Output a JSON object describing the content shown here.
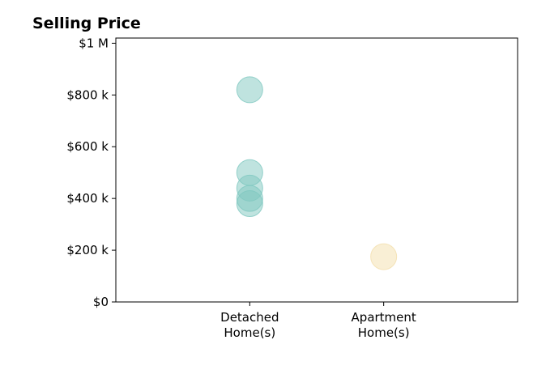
{
  "chart_data": {
    "type": "scatter",
    "title": "Selling Price",
    "xlabel": "",
    "ylabel": "",
    "categories": [
      "Detached\nHome(s)",
      "Apartment\nHome(s)"
    ],
    "y_tick_labels": [
      "$0",
      "$200 k",
      "$400 k",
      "$600 k",
      "$800 k",
      "$1 M"
    ],
    "y_ticks": [
      0,
      200000,
      400000,
      600000,
      800000,
      1000000
    ],
    "ylim": [
      0,
      1020000
    ],
    "xlim": [
      -1,
      2
    ],
    "grid": false,
    "legend": "none",
    "series": [
      {
        "category": "Detached\nHome(s)",
        "color": "#7fc8c0",
        "values": [
          820000,
          500000,
          440000,
          400000,
          380000
        ]
      },
      {
        "category": "Apartment\nHome(s)",
        "color": "#f3dfac",
        "values": [
          175000
        ]
      }
    ]
  }
}
